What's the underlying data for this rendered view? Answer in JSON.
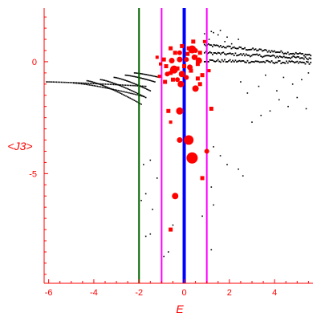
{
  "chart_data": {
    "type": "scatter",
    "xlabel": "E",
    "ylabel": "<J3>",
    "xlim": [
      -6.2,
      5.7
    ],
    "ylim": [
      -9.9,
      2.4
    ],
    "x_ticks": [
      -6,
      -4,
      -2,
      0,
      2,
      4
    ],
    "y_ticks": [
      0,
      -5
    ],
    "x_tick_labels": [
      "-6",
      "-4",
      "-2",
      "0",
      "2",
      "4"
    ],
    "y_tick_labels": [
      "0",
      "-5"
    ],
    "grid": false,
    "colors": {
      "axis": "#ff0000",
      "black_points": "#000000",
      "red_points": "#ff0000",
      "line_green": "#006400",
      "line_magenta": "#ff00ff",
      "line_blue": "#0000ff"
    },
    "vertical_lines": [
      {
        "x": -2.0,
        "color": "#006400"
      },
      {
        "x": -1.0,
        "color": "#ff00ff"
      },
      {
        "x": 1.0,
        "color": "#ff00ff"
      },
      {
        "x": 0.0,
        "color": "#0000ff"
      }
    ],
    "series": [
      {
        "points_description": "black density of states points",
        "branches": [
          {
            "x0": -6.1,
            "y0": -0.9,
            "x1": -1.7,
            "y1": -1.1,
            "n": 60
          },
          {
            "x0": -4.9,
            "y0": -0.95,
            "x1": -1.8,
            "y1": -1.55,
            "n": 45
          },
          {
            "x0": -4.3,
            "y0": -0.85,
            "x1": -1.9,
            "y1": -1.9,
            "n": 40
          },
          {
            "x0": -3.7,
            "y0": -0.8,
            "x1": -1.7,
            "y1": -1.6,
            "n": 35
          },
          {
            "x0": -3.1,
            "y0": -0.7,
            "x1": -1.5,
            "y1": -1.3,
            "n": 30
          },
          {
            "x0": -2.6,
            "y0": -0.6,
            "x1": -1.3,
            "y1": -0.9,
            "n": 25
          },
          {
            "x0": -2.2,
            "y0": -0.5,
            "x1": -1.1,
            "y1": -0.7,
            "n": 20
          }
        ],
        "band_upper": {
          "x0": 0.9,
          "x1": 5.6,
          "y0": 0.75,
          "y1": 0.3,
          "n": 80
        },
        "band_lower": {
          "x0": 0.9,
          "x1": 5.6,
          "y0": 0.05,
          "y1": -0.05,
          "n": 80
        },
        "band_mid": {
          "x0": 0.9,
          "x1": 5.6,
          "y0": 0.4,
          "y1": 0.15,
          "n": 80
        },
        "isolated": [
          [
            -2.0,
            -4.1
          ],
          [
            -1.8,
            -4.6
          ],
          [
            -1.5,
            -4.4
          ],
          [
            -1.7,
            -5.9
          ],
          [
            -1.9,
            -6.2
          ],
          [
            -1.5,
            -7.7
          ],
          [
            -1.7,
            -7.8
          ],
          [
            -1.2,
            -5.2
          ],
          [
            -0.9,
            -8.7
          ],
          [
            -0.7,
            -8.5
          ],
          [
            -0.5,
            -7.3
          ],
          [
            -1.4,
            -6.6
          ],
          [
            1.3,
            -3.8
          ],
          [
            1.6,
            -4.2
          ],
          [
            1.9,
            -4.6
          ],
          [
            2.4,
            -4.8
          ],
          [
            2.6,
            -5.1
          ],
          [
            3.0,
            -2.7
          ],
          [
            3.4,
            -2.4
          ],
          [
            3.8,
            -2.2
          ],
          [
            4.2,
            -1.7
          ],
          [
            4.6,
            -2.0
          ],
          [
            5.0,
            -1.6
          ],
          [
            5.4,
            -2.1
          ],
          [
            1.2,
            -5.6
          ],
          [
            1.3,
            -6.4
          ],
          [
            1.0,
            -7.2
          ],
          [
            1.2,
            -8.4
          ],
          [
            0.8,
            -6.9
          ],
          [
            2.8,
            -1.4
          ],
          [
            3.3,
            -1.1
          ],
          [
            4.1,
            -1.3
          ],
          [
            4.8,
            -1.0
          ],
          [
            5.2,
            -0.8
          ],
          [
            2.5,
            -0.9
          ],
          [
            3.6,
            -0.6
          ],
          [
            4.4,
            -0.7
          ],
          [
            5.5,
            -0.5
          ],
          [
            1.1,
            1.0
          ],
          [
            1.3,
            1.3
          ],
          [
            1.5,
            1.2
          ],
          [
            1.8,
            0.9
          ],
          [
            2.1,
            0.8
          ],
          [
            2.4,
            1.0
          ],
          [
            1.2,
            1.35
          ],
          [
            0.9,
            1.25
          ],
          [
            1.6,
            1.4
          ],
          [
            1.9,
            1.1
          ]
        ]
      },
      {
        "points_description": "red weighted points",
        "points": [
          [
            -0.3,
            -0.3,
            2.5
          ],
          [
            0.0,
            -0.2,
            2.5
          ],
          [
            0.3,
            -0.4,
            2.5
          ],
          [
            -0.6,
            -0.5,
            2.5
          ],
          [
            0.5,
            0.2,
            2.5
          ],
          [
            0.7,
            0.4,
            2.5
          ],
          [
            -0.8,
            -0.2,
            2.5
          ],
          [
            0.2,
            0.6,
            2.5
          ],
          [
            0.5,
            0.5,
            3
          ],
          [
            -0.2,
            0.1,
            3.5
          ],
          [
            0.8,
            -0.6,
            2.5
          ],
          [
            -0.9,
            0.1,
            2.5
          ],
          [
            0.1,
            -0.7,
            3
          ],
          [
            -0.5,
            -0.8,
            2.5
          ],
          [
            0.6,
            -0.1,
            2.5
          ],
          [
            -0.4,
            0.4,
            2.5
          ],
          [
            0.35,
            0.55,
            5
          ],
          [
            -0.45,
            -0.35,
            5
          ],
          [
            0.65,
            0.05,
            4
          ],
          [
            -0.1,
            -0.55,
            4
          ],
          [
            -0.15,
            -1.0,
            4
          ],
          [
            0.5,
            -1.2,
            4
          ],
          [
            -0.85,
            -0.9,
            2.5
          ],
          [
            -1.1,
            -0.65,
            2
          ],
          [
            -1.05,
            -0.1,
            2
          ],
          [
            -1.2,
            0.2,
            2
          ],
          [
            0.9,
            0.9,
            2
          ],
          [
            1.1,
            -0.4,
            2
          ],
          [
            -0.2,
            -2.2,
            4.5
          ],
          [
            0.2,
            -3.5,
            6
          ],
          [
            -0.2,
            -3.5,
            3.5
          ],
          [
            0.35,
            -4.3,
            7
          ],
          [
            1.0,
            -4.0,
            3
          ],
          [
            1.2,
            -2.1,
            2.5
          ],
          [
            -0.7,
            -2.2,
            2.5
          ],
          [
            -0.4,
            -6.0,
            4
          ],
          [
            -0.6,
            -2.7,
            2
          ],
          [
            0.8,
            -5.2,
            2.5
          ],
          [
            -0.6,
            -7.5,
            2.5
          ],
          [
            0.7,
            -1.0,
            2.5
          ],
          [
            0.1,
            0.1,
            3
          ],
          [
            -0.1,
            0.7,
            2.5
          ],
          [
            0.4,
            0.9,
            2.5
          ],
          [
            -0.6,
            0.6,
            2.5
          ],
          [
            -0.75,
            -0.55,
            3
          ],
          [
            0.25,
            -0.25,
            3.5
          ],
          [
            -0.3,
            -0.8,
            3
          ],
          [
            0.6,
            -0.75,
            2.5
          ],
          [
            0.45,
            0.2,
            3.5
          ],
          [
            -0.2,
            0.4,
            3
          ],
          [
            0.15,
            0.35,
            2.5
          ],
          [
            -0.55,
            0.05,
            3.5
          ]
        ]
      }
    ]
  }
}
